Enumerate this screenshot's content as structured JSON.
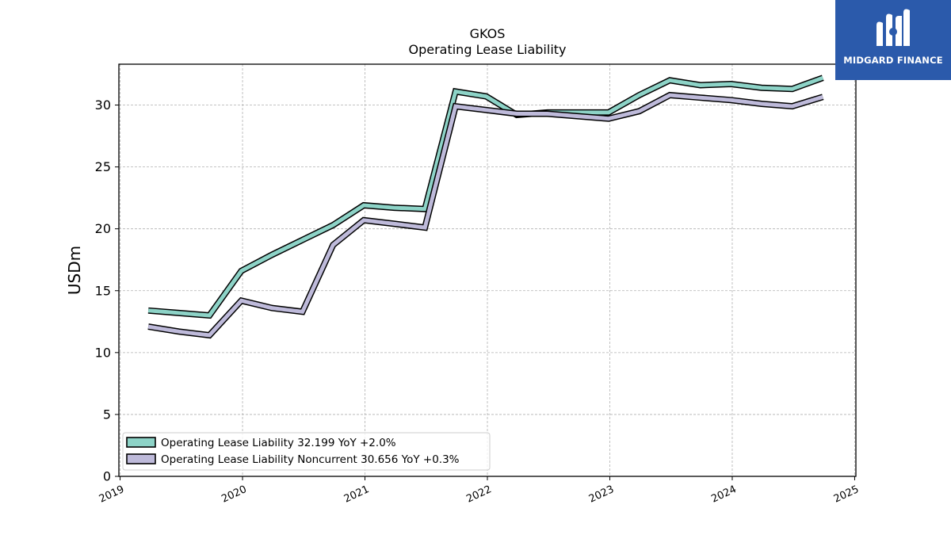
{
  "chart_data": {
    "type": "line",
    "title": "GKOS",
    "subtitle": "Operating Lease Liability",
    "ylabel": "USDm",
    "xlabel": "",
    "ylim": [
      0,
      33.3
    ],
    "xlim": [
      2018.99,
      2025.01
    ],
    "yticks": [
      0,
      5,
      10,
      15,
      20,
      25,
      30
    ],
    "xticks": [
      "2019",
      "2020",
      "2021",
      "2022",
      "2023",
      "2024",
      "2025"
    ],
    "grid": true,
    "legend_position": "bottom-left",
    "series": [
      {
        "name": "Operating Lease Liability  32.199 YoY +2.0%",
        "color": "#8dd3c7",
        "x": [
          2019.23,
          2019.48,
          2019.73,
          2019.99,
          2020.24,
          2020.49,
          2020.74,
          2020.99,
          2021.24,
          2021.49,
          2021.74,
          2021.99,
          2022.24,
          2022.49,
          2022.74,
          2022.99,
          2023.24,
          2023.49,
          2023.74,
          2023.99,
          2024.24,
          2024.49,
          2024.74
        ],
        "values": [
          13.4,
          13.2,
          13.0,
          16.6,
          17.9,
          19.1,
          20.3,
          21.9,
          21.7,
          21.6,
          31.1,
          30.7,
          29.2,
          29.4,
          29.4,
          29.4,
          30.8,
          32.0,
          31.6,
          31.7,
          31.4,
          31.3,
          32.199
        ]
      },
      {
        "name": "Operating Lease Liability Noncurrent  30.656 YoY +0.3%",
        "color": "#bebada",
        "x": [
          2019.23,
          2019.48,
          2019.73,
          2019.99,
          2020.24,
          2020.49,
          2020.74,
          2020.99,
          2021.24,
          2021.49,
          2021.74,
          2021.99,
          2022.24,
          2022.49,
          2022.74,
          2022.99,
          2023.24,
          2023.49,
          2023.74,
          2023.99,
          2024.24,
          2024.49,
          2024.74
        ],
        "values": [
          12.1,
          11.7,
          11.4,
          14.2,
          13.6,
          13.3,
          18.7,
          20.7,
          20.4,
          20.1,
          29.9,
          29.6,
          29.3,
          29.3,
          29.1,
          28.9,
          29.5,
          30.8,
          30.6,
          30.4,
          30.1,
          29.9,
          30.656
        ]
      }
    ]
  },
  "logo": {
    "text": "MIDGARD FINANCE",
    "color": "#2b5aab"
  }
}
